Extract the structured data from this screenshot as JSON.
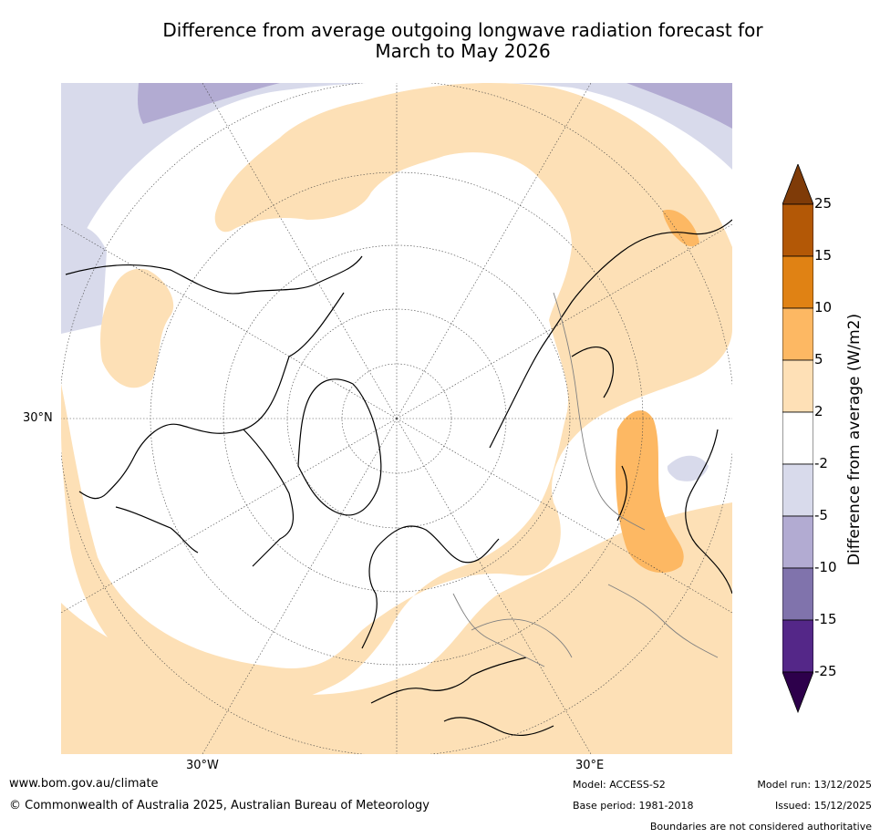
{
  "title": {
    "line1": "Difference from average outgoing longwave radiation forecast for",
    "line2": "March to May 2026"
  },
  "map": {
    "projection": "north-polar-stereographic",
    "lat_label": "30°N",
    "lon_labels": [
      "30°W",
      "30°E"
    ],
    "colors": {
      "land_outline": "#000000",
      "border": "#808080",
      "pos_2_5": "#fde0b6",
      "pos_5_10": "#fdb863",
      "neg_2_5": "#d8daeb",
      "neg_5_10": "#b2abd2"
    }
  },
  "colorbar": {
    "title": "Difference from average (W/m2)",
    "ticks": [
      "25",
      "15",
      "10",
      "5",
      "2",
      "-2",
      "-5",
      "-10",
      "-15",
      "-25"
    ],
    "colors": [
      "#7f3b08",
      "#b35806",
      "#e08214",
      "#fdb863",
      "#fee0b6",
      "#ffffff",
      "#d8daeb",
      "#b2abd2",
      "#8073ac",
      "#542788",
      "#2d004b"
    ]
  },
  "footer": {
    "url": "www.bom.gov.au/climate",
    "copyright": "© Commonwealth of Australia 2025, Australian Bureau of Meteorology",
    "model": "Model: ACCESS-S2",
    "base_period": "Base period: 1981-2018",
    "model_run": "Model run: 13/12/2025",
    "issued": "Issued: 15/12/2025",
    "disclaimer": "Boundaries are not considered authoritative"
  }
}
